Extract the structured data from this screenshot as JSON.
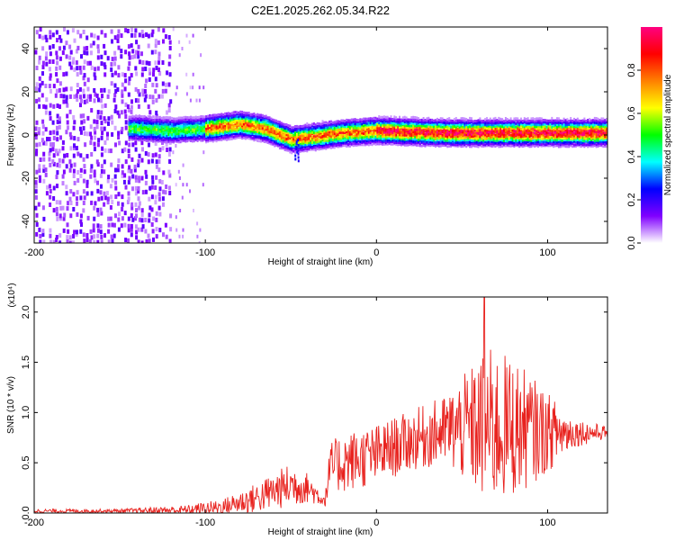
{
  "chart_data": [
    {
      "type": "heatmap",
      "title": "C2E1.2025.262.05.34.R22",
      "xlabel": "Height of straight line (km)",
      "ylabel": "Frequency (Hz)",
      "xlim": [
        -200,
        135
      ],
      "ylim": [
        -50,
        50
      ],
      "xticks": [
        -200,
        -100,
        0,
        100
      ],
      "yticks": [
        -40,
        -20,
        0,
        20,
        40
      ],
      "xtick_labels": [
        "-200",
        "-100",
        "0",
        "100"
      ],
      "ytick_labels": [
        "-40",
        "-20",
        "0",
        "20",
        "40"
      ],
      "colorbar": {
        "label": "Normalized spectral amplitude",
        "range": [
          0,
          1
        ],
        "ticks": [
          0.0,
          0.2,
          0.4,
          0.6,
          0.8
        ],
        "tick_labels": [
          "0.0",
          "0.2",
          "0.4",
          "0.6",
          "0.8"
        ],
        "colors": [
          "#ffffff",
          "#8000ff",
          "#0000ff",
          "#00ffff",
          "#00ff00",
          "#ffff00",
          "#ff8000",
          "#ff0000",
          "#ff0080"
        ]
      },
      "features": {
        "noise_region_x": [
          -200,
          -120
        ],
        "scatter_region_x": [
          -120,
          -100
        ],
        "band_center_hz": [
          {
            "x": -140,
            "f": 3
          },
          {
            "x": -120,
            "f": 2
          },
          {
            "x": -100,
            "f": 3
          },
          {
            "x": -80,
            "f": 5
          },
          {
            "x": -65,
            "f": 3
          },
          {
            "x": -50,
            "f": -2
          },
          {
            "x": -40,
            "f": -1
          },
          {
            "x": -20,
            "f": 1
          },
          {
            "x": 0,
            "f": 2
          },
          {
            "x": 40,
            "f": 1
          },
          {
            "x": 80,
            "f": 1
          },
          {
            "x": 135,
            "f": 1
          }
        ],
        "band_halfwidth_hz": 4,
        "dip": {
          "x": -47,
          "f_low": -12,
          "f_high": -2
        }
      }
    },
    {
      "type": "line",
      "xlabel": "Height of straight line (km)",
      "ylabel": "SNR (10 * v/v)",
      "y_scale_note": "(x10⁴)",
      "xlim": [
        -200,
        135
      ],
      "ylim": [
        0,
        2.15
      ],
      "xticks": [
        -200,
        -100,
        0,
        100
      ],
      "yticks": [
        0.0,
        0.5,
        1.0,
        1.5,
        2.0
      ],
      "xtick_labels": [
        "-200",
        "-100",
        "0",
        "100"
      ],
      "ytick_labels": [
        "0.0",
        "0.5",
        "1.0",
        "1.5",
        "2.0"
      ],
      "color": "#e8221e",
      "series": [
        {
          "name": "SNR",
          "envelope": [
            {
              "x": -200,
              "base": 0.02,
              "amp": 0.02
            },
            {
              "x": -150,
              "base": 0.02,
              "amp": 0.02
            },
            {
              "x": -110,
              "base": 0.03,
              "amp": 0.05
            },
            {
              "x": -90,
              "base": 0.06,
              "amp": 0.08
            },
            {
              "x": -70,
              "base": 0.15,
              "amp": 0.15
            },
            {
              "x": -50,
              "base": 0.28,
              "amp": 0.22
            },
            {
              "x": -40,
              "base": 0.25,
              "amp": 0.15
            },
            {
              "x": -30,
              "base": 0.12,
              "amp": 0.06
            },
            {
              "x": -27,
              "base": 0.45,
              "amp": 0.25
            },
            {
              "x": -20,
              "base": 0.5,
              "amp": 0.3
            },
            {
              "x": 0,
              "base": 0.58,
              "amp": 0.3
            },
            {
              "x": 20,
              "base": 0.72,
              "amp": 0.3
            },
            {
              "x": 40,
              "base": 0.82,
              "amp": 0.35
            },
            {
              "x": 55,
              "base": 0.85,
              "amp": 0.6
            },
            {
              "x": 65,
              "base": 0.85,
              "amp": 0.8
            },
            {
              "x": 80,
              "base": 0.85,
              "amp": 0.7
            },
            {
              "x": 100,
              "base": 0.8,
              "amp": 0.4
            },
            {
              "x": 115,
              "base": 0.8,
              "amp": 0.15
            },
            {
              "x": 135,
              "base": 0.8,
              "amp": 0.06
            }
          ],
          "peak_value": 2.15,
          "peak_x": 63
        }
      ]
    }
  ]
}
